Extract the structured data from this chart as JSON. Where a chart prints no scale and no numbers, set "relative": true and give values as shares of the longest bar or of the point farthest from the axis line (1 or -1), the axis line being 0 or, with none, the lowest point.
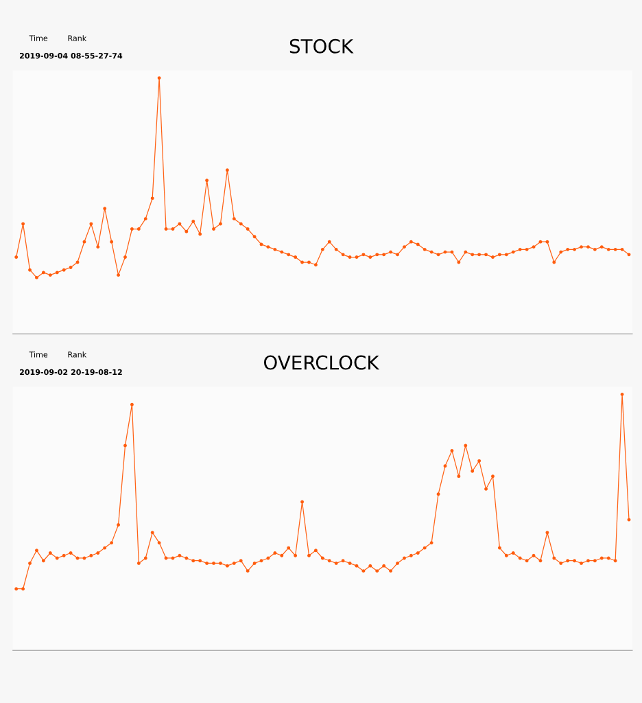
{
  "chart_data": [
    {
      "type": "line",
      "title": "STOCK",
      "relative": true,
      "marker": "circle",
      "line_style": "solid",
      "grid": false,
      "annotations": [
        "2019-09-04 08-55-27-74",
        "Time",
        "Rank"
      ],
      "categories": [
        null,
        null,
        null,
        null,
        null,
        null,
        null,
        null,
        null,
        null,
        null,
        null,
        null,
        null,
        null,
        null,
        null,
        null,
        null,
        null,
        null,
        null,
        null,
        null,
        null,
        null,
        null,
        null,
        null,
        null,
        null,
        null,
        null,
        null,
        null,
        null,
        null,
        null,
        null,
        null,
        null,
        null,
        null,
        null,
        null,
        null,
        null,
        null,
        null,
        null,
        null,
        null,
        null,
        null,
        null,
        null,
        null,
        null,
        null,
        null,
        null,
        null,
        null,
        null,
        null,
        null,
        null,
        null,
        null,
        null,
        null,
        null,
        null,
        null,
        null,
        null,
        null,
        null,
        null,
        null,
        null,
        null,
        null,
        null,
        null,
        null,
        null,
        null,
        null,
        null,
        null
      ],
      "series": [
        {
          "color": "#ff5a0a",
          "values": [
            0.3,
            0.43,
            0.25,
            0.22,
            0.24,
            0.23,
            0.24,
            0.25,
            0.26,
            0.28,
            0.36,
            0.43,
            0.34,
            0.49,
            0.36,
            0.23,
            0.3,
            0.41,
            0.41,
            0.45,
            0.53,
            1,
            0.41,
            0.41,
            0.43,
            0.4,
            0.44,
            0.39,
            0.6,
            0.41,
            0.43,
            0.64,
            0.45,
            0.43,
            0.41,
            0.38,
            0.35,
            0.34,
            0.33,
            0.32,
            0.31,
            0.3,
            0.28,
            0.28,
            0.27,
            0.33,
            0.36,
            0.33,
            0.31,
            0.3,
            0.3,
            0.31,
            0.3,
            0.31,
            0.31,
            0.32,
            0.31,
            0.34,
            0.36,
            0.35,
            0.33,
            0.32,
            0.31,
            0.32,
            0.32,
            0.28,
            0.32,
            0.31,
            0.31,
            0.31,
            0.3,
            0.31,
            0.31,
            0.32,
            0.33,
            0.33,
            0.34,
            0.36,
            0.36,
            0.28,
            0.32,
            0.33,
            0.33,
            0.34,
            0.34,
            0.33,
            0.34,
            0.33,
            0.33,
            0.33,
            0.31
          ]
        }
      ]
    },
    {
      "type": "line",
      "title": "OVERCLOCK",
      "relative": true,
      "marker": "circle",
      "line_style": "solid",
      "grid": false,
      "annotations": [
        "2019-09-02 20-19-08-12",
        "Time",
        "Rank"
      ],
      "categories": [
        null,
        null,
        null,
        null,
        null,
        null,
        null,
        null,
        null,
        null,
        null,
        null,
        null,
        null,
        null,
        null,
        null,
        null,
        null,
        null,
        null,
        null,
        null,
        null,
        null,
        null,
        null,
        null,
        null,
        null,
        null,
        null,
        null,
        null,
        null,
        null,
        null,
        null,
        null,
        null,
        null,
        null,
        null,
        null,
        null,
        null,
        null,
        null,
        null,
        null,
        null,
        null,
        null,
        null,
        null,
        null,
        null,
        null,
        null,
        null,
        null,
        null,
        null,
        null,
        null,
        null,
        null,
        null,
        null,
        null,
        null,
        null,
        null,
        null,
        null,
        null,
        null,
        null,
        null,
        null,
        null,
        null,
        null,
        null,
        null,
        null,
        null,
        null,
        null,
        null,
        null
      ],
      "series": [
        {
          "color": "#ff5a0a",
          "values": [
            0.24,
            0.24,
            0.34,
            0.39,
            0.35,
            0.38,
            0.36,
            0.37,
            0.38,
            0.36,
            0.36,
            0.37,
            0.38,
            0.4,
            0.42,
            0.49,
            0.8,
            0.96,
            0.34,
            0.36,
            0.46,
            0.42,
            0.36,
            0.36,
            0.37,
            0.36,
            0.35,
            0.35,
            0.34,
            0.34,
            0.34,
            0.33,
            0.34,
            0.35,
            0.31,
            0.34,
            0.35,
            0.36,
            0.38,
            0.37,
            0.4,
            0.37,
            0.58,
            0.37,
            0.39,
            0.36,
            0.35,
            0.34,
            0.35,
            0.34,
            0.33,
            0.31,
            0.33,
            0.31,
            0.33,
            0.31,
            0.34,
            0.36,
            0.37,
            0.38,
            0.4,
            0.42,
            0.61,
            0.72,
            0.78,
            0.68,
            0.8,
            0.7,
            0.74,
            0.63,
            0.68,
            0.4,
            0.37,
            0.38,
            0.36,
            0.35,
            0.37,
            0.35,
            0.46,
            0.36,
            0.34,
            0.35,
            0.35,
            0.34,
            0.35,
            0.35,
            0.36,
            0.36,
            0.35,
            1,
            0.51
          ]
        }
      ]
    }
  ]
}
